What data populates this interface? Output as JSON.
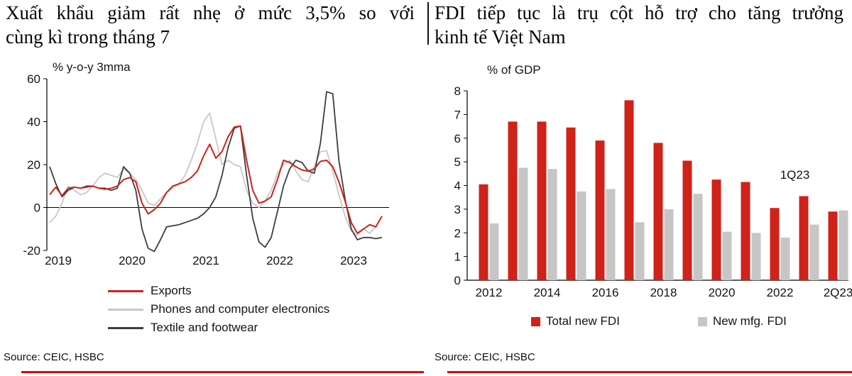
{
  "page": {
    "background": "#ffffff",
    "accent_red": "#d40b11"
  },
  "left": {
    "title_line1": "Xuất khẩu giảm rất nhẹ ở mức 3,5% so với",
    "title_line2": "cùng kì trong tháng 7",
    "source": "Source: CEIC, HSBC"
  },
  "right": {
    "title_line1": "FDI tiếp tục là trụ cột hỗ trợ cho tăng trưởng",
    "title_line2": "kinh tế Việt Nam",
    "source": "Source: CEIC, HSBC"
  },
  "chart_data": [
    {
      "type": "line",
      "title": "Xuất khẩu giảm rất nhẹ ở mức 3,5% so với cùng kì trong tháng 7",
      "unit_label": "% y-o-y 3mma",
      "x_monthly_from": "2019-01",
      "x_monthly_to": "2023-07",
      "x_tick_labels": [
        "2019",
        "2020",
        "2021",
        "2022",
        "2023"
      ],
      "ylim": [
        -20,
        60
      ],
      "y_ticks": [
        -20,
        0,
        20,
        40,
        60
      ],
      "grid": false,
      "legend_position": "bottom",
      "series": [
        {
          "name": "Exports",
          "color": "#c8251c",
          "values": [
            6,
            9.5,
            5.5,
            9,
            9.5,
            9,
            9.5,
            10,
            9,
            8.5,
            9,
            10,
            13,
            14,
            12,
            2,
            -3,
            -1,
            2,
            7,
            10,
            11,
            12,
            14,
            17,
            24,
            29.5,
            23,
            26,
            33,
            37.5,
            38,
            22,
            8,
            2,
            3,
            5,
            13,
            22,
            21,
            19,
            17.5,
            17,
            18,
            21.5,
            22,
            19,
            12,
            3,
            -7,
            -12,
            -10,
            -8,
            -9,
            -4
          ]
        },
        {
          "name": "Phones and computer electronics",
          "color": "#c8c8c8",
          "values": [
            -7,
            -4,
            2,
            10,
            8,
            6,
            7,
            10,
            14,
            16,
            15,
            14,
            18,
            16,
            13,
            8,
            2,
            1,
            4,
            7,
            9,
            11,
            15,
            22,
            30,
            40,
            44,
            32,
            20,
            22,
            20,
            19,
            8,
            2,
            0,
            3,
            8,
            16,
            20,
            22,
            17,
            13,
            12,
            19,
            26,
            26.5,
            17,
            6,
            -4,
            -11,
            -13,
            -10,
            -12,
            -9,
            -4
          ]
        },
        {
          "name": "Textile and footwear",
          "color": "#3d3d3d",
          "values": [
            19,
            11,
            5,
            8,
            9.5,
            9,
            10,
            10,
            9,
            9,
            8,
            9,
            19,
            16,
            8,
            -10,
            -19,
            -20.5,
            -15,
            -9,
            -8.5,
            -8,
            -7,
            -6,
            -5,
            -3,
            0,
            5,
            15,
            28,
            37,
            38,
            15,
            -5,
            -16,
            -18.5,
            -14,
            -2,
            10,
            18,
            22,
            21,
            17,
            16,
            30,
            54,
            53,
            22,
            4,
            -10,
            -15,
            -14,
            -14,
            -14.5,
            -14
          ]
        }
      ]
    },
    {
      "type": "bar",
      "title": "FDI tiếp tục là trụ cột hỗ trợ cho tăng trưởng kinh tế Việt Nam",
      "unit_label": "% of GDP",
      "categories": [
        "2012",
        "2013",
        "2014",
        "2015",
        "2016",
        "2017",
        "2018",
        "2019",
        "2020",
        "2021",
        "2022",
        "1Q23",
        "2Q23"
      ],
      "x_tick_labels": [
        "2012",
        "2014",
        "2016",
        "2018",
        "2020",
        "2022",
        "2Q23"
      ],
      "x_tick_indices": [
        0,
        2,
        4,
        6,
        8,
        10,
        12
      ],
      "ylim": [
        0,
        8
      ],
      "y_ticks": [
        0,
        1,
        2,
        3,
        4,
        5,
        6,
        7,
        8
      ],
      "grid": false,
      "legend_position": "bottom",
      "annotation": {
        "text": "1Q23",
        "category_index": 11
      },
      "series": [
        {
          "name": "Total new FDI",
          "color": "#cf2219",
          "values": [
            4.05,
            6.7,
            6.7,
            6.45,
            5.9,
            7.6,
            5.8,
            5.05,
            4.25,
            4.15,
            3.05,
            3.55,
            2.9
          ]
        },
        {
          "name": "New mfg. FDI",
          "color": "#c6c6c6",
          "values": [
            2.4,
            4.75,
            4.7,
            3.75,
            3.85,
            2.45,
            3.0,
            3.65,
            2.05,
            2.0,
            1.8,
            2.35,
            2.95
          ]
        }
      ]
    }
  ]
}
